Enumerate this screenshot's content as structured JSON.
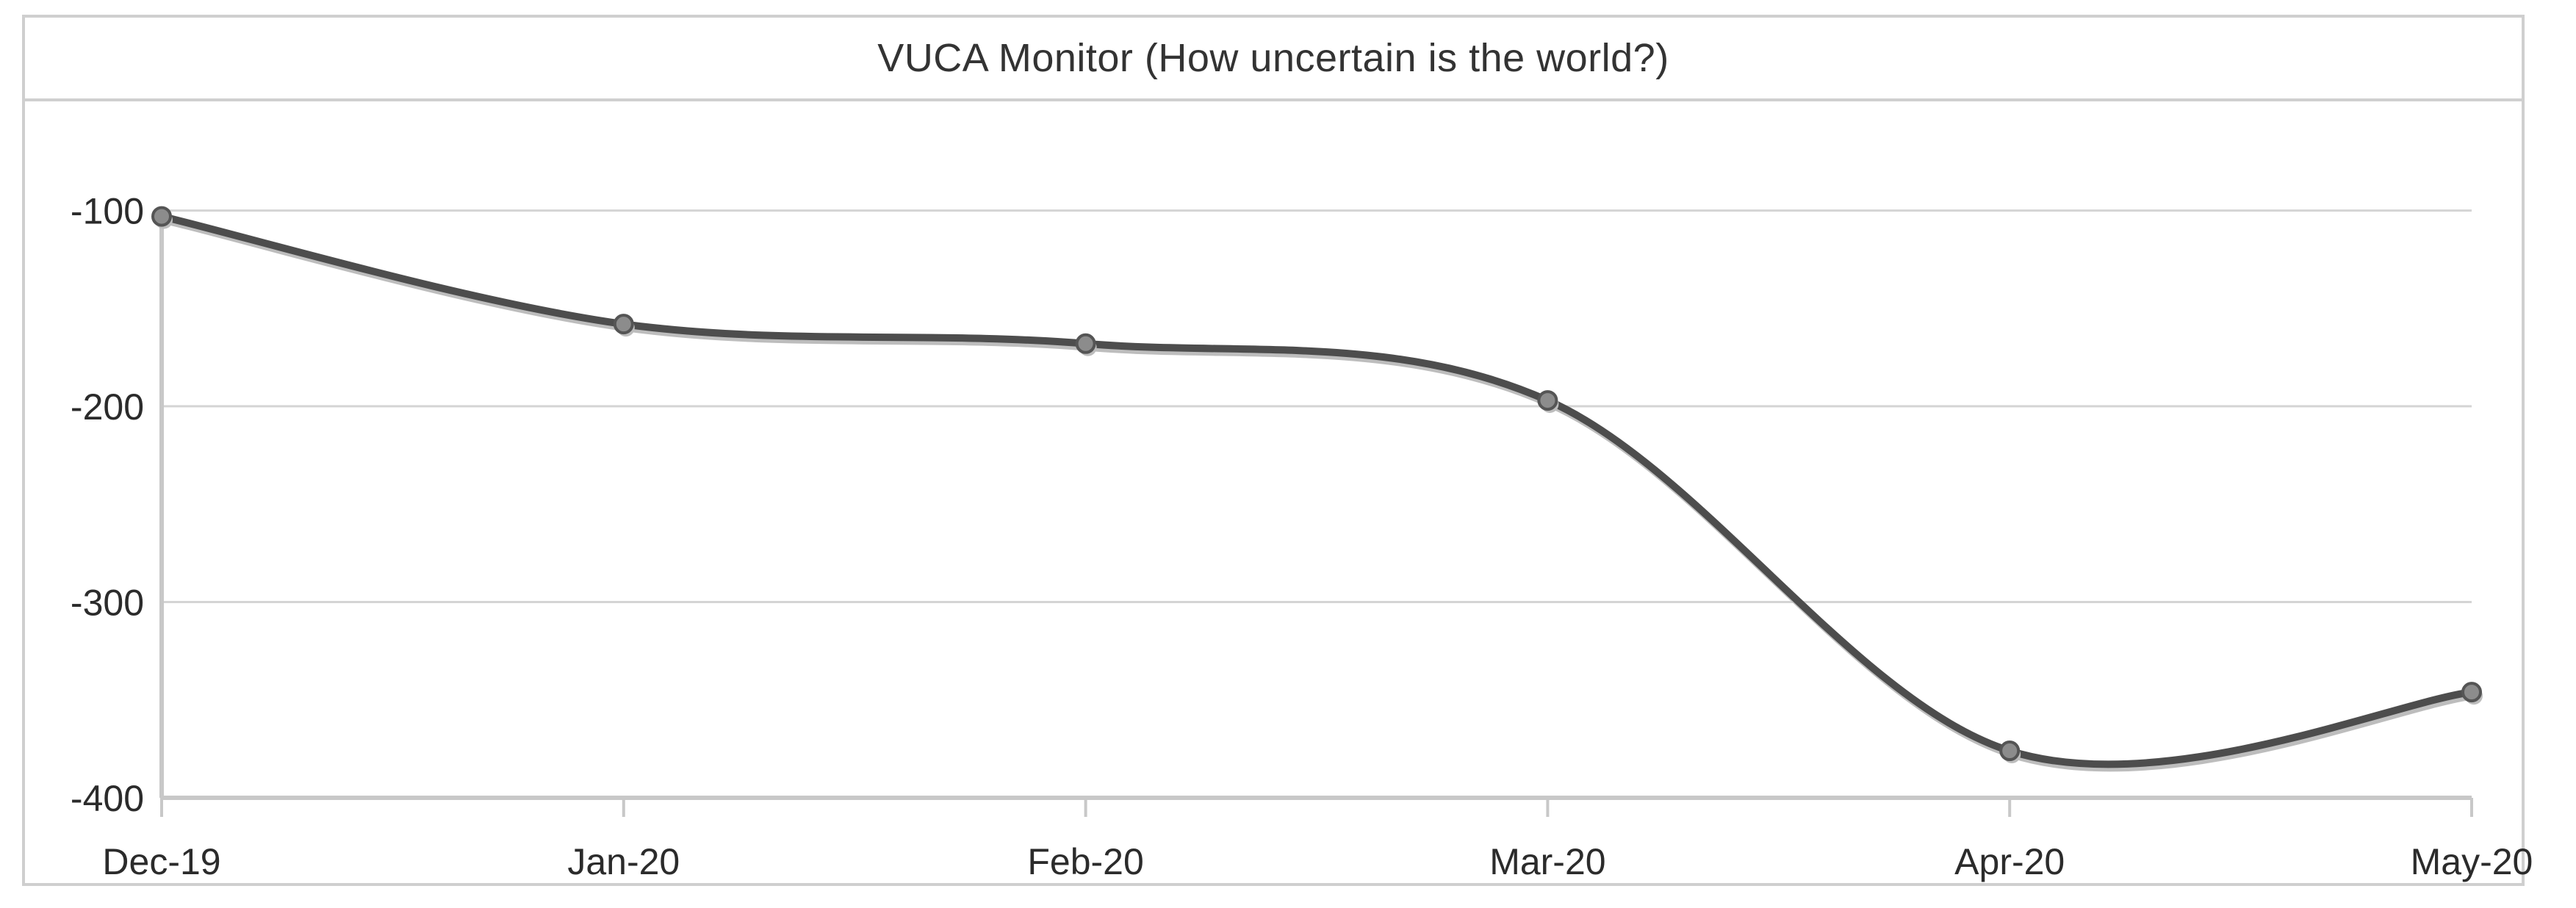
{
  "chart_data": {
    "type": "line",
    "title": "VUCA Monitor (How uncertain is the world?)",
    "xlabel": "",
    "ylabel": "",
    "categories": [
      "Dec-19",
      "Jan-20",
      "Feb-20",
      "Mar-20",
      "Apr-20",
      "May-20"
    ],
    "series": [
      {
        "values": [
          -103,
          -158,
          -168,
          -197,
          -376,
          -346
        ]
      }
    ],
    "ylim": [
      -400,
      -60
    ],
    "yticks": [
      -100,
      -200,
      -300,
      -400
    ],
    "ytick_labels": [
      "-100",
      "-200",
      "-300",
      "-400"
    ],
    "grid": true,
    "smooth": true,
    "legend": "none",
    "colors": {
      "line": "#4d4d4d",
      "marker_fill": "#8c8c8c",
      "marker_stroke": "#555555",
      "grid": "#d4d4d4",
      "axis": "#c8c8c8"
    }
  }
}
